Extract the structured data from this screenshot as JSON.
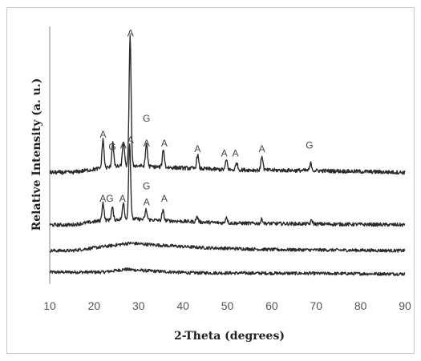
{
  "chart_data": {
    "type": "line",
    "title": "",
    "xlabel": "2-Theta (degrees)",
    "ylabel": "Relative Intensity (a. u.)",
    "xlim": [
      10,
      90
    ],
    "xticks": [
      "10",
      "20",
      "30",
      "40",
      "50",
      "60",
      "70",
      "80",
      "90"
    ],
    "grid": false,
    "legend": "none",
    "line_color": "#2b2b2b",
    "series": [
      {
        "baseline": 0.44,
        "noise": 0.18,
        "hump": [
          [
            22,
            0.1
          ],
          [
            27,
            0.26
          ],
          [
            33,
            0.16
          ],
          [
            42,
            0.06
          ],
          [
            60,
            0.04
          ],
          [
            90,
            0.0
          ]
        ],
        "peaks": []
      },
      {
        "baseline": 1.75,
        "noise": 0.18,
        "hump": [
          [
            15,
            0.0
          ],
          [
            22,
            0.22
          ],
          [
            28,
            0.42
          ],
          [
            35,
            0.3
          ],
          [
            45,
            0.16
          ],
          [
            60,
            0.06
          ],
          [
            90,
            0.0
          ]
        ],
        "peaks": []
      },
      {
        "baseline": 3.2,
        "noise": 0.2,
        "hump": [
          [
            15,
            0.0
          ],
          [
            22,
            0.25
          ],
          [
            28,
            0.35
          ],
          [
            35,
            0.25
          ],
          [
            50,
            0.1
          ],
          [
            90,
            0.0
          ]
        ],
        "peaks": [
          [
            22.0,
            1.0
          ],
          [
            24.1,
            0.7
          ],
          [
            26.6,
            0.9
          ],
          [
            28.0,
            4.3
          ],
          [
            31.7,
            0.55
          ],
          [
            35.5,
            0.55
          ],
          [
            43.2,
            0.3
          ],
          [
            49.8,
            0.35
          ],
          [
            57.8,
            0.25
          ],
          [
            69.0,
            0.2
          ]
        ]
      },
      {
        "baseline": 6.15,
        "noise": 0.22,
        "hump": [
          [
            15,
            0.0
          ],
          [
            22,
            0.25
          ],
          [
            28,
            0.4
          ],
          [
            35,
            0.3
          ],
          [
            50,
            0.15
          ],
          [
            70,
            0.1
          ],
          [
            90,
            0.0
          ]
        ],
        "peaks": [
          [
            22.0,
            1.6
          ],
          [
            24.2,
            1.4
          ],
          [
            26.6,
            1.4
          ],
          [
            28.1,
            7.3
          ],
          [
            31.8,
            1.3
          ],
          [
            35.6,
            1.0
          ],
          [
            43.3,
            0.8
          ],
          [
            49.8,
            0.55
          ],
          [
            52.1,
            0.4
          ],
          [
            57.8,
            0.8
          ],
          [
            68.8,
            0.4
          ]
        ]
      }
    ],
    "annotations": [
      {
        "text": "A",
        "x": 28.2,
        "y": 13.8
      },
      {
        "text": "A",
        "x": 22.0,
        "y": 8.1
      },
      {
        "text": "G",
        "x": 24.1,
        "y": 7.4
      },
      {
        "text": "A",
        "x": 26.6,
        "y": 7.5
      },
      {
        "text": "G",
        "x": 31.8,
        "y": 9.0
      },
      {
        "text": "A",
        "x": 31.8,
        "y": 7.6
      },
      {
        "text": "A",
        "x": 35.8,
        "y": 7.6
      },
      {
        "text": "A",
        "x": 43.3,
        "y": 7.3
      },
      {
        "text": "A",
        "x": 49.3,
        "y": 7.05
      },
      {
        "text": "A",
        "x": 51.8,
        "y": 7.05
      },
      {
        "text": "A",
        "x": 57.8,
        "y": 7.3
      },
      {
        "text": "G",
        "x": 68.5,
        "y": 7.5
      },
      {
        "text": "A",
        "x": 28.2,
        "y": 7.8
      },
      {
        "text": "AG",
        "x": 22.8,
        "y": 4.5
      },
      {
        "text": "A",
        "x": 26.4,
        "y": 4.5
      },
      {
        "text": "G",
        "x": 31.8,
        "y": 5.2
      },
      {
        "text": "A",
        "x": 31.8,
        "y": 4.3
      },
      {
        "text": "A",
        "x": 35.8,
        "y": 4.5
      }
    ]
  }
}
